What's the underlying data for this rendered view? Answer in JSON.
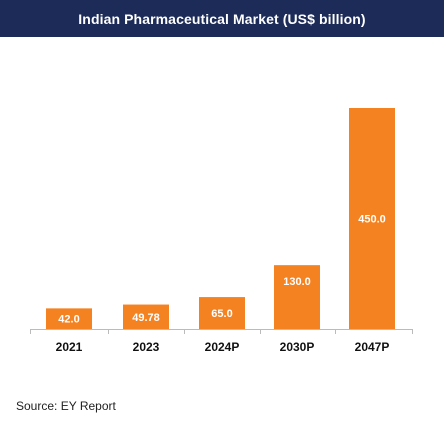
{
  "header": {
    "title": "Indian Pharmaceutical Market (US$ billion)"
  },
  "chart_data": {
    "type": "bar",
    "title": "Indian Pharmaceutical Market (US$ billion)",
    "categories": [
      "2021",
      "2023",
      "2024P",
      "2030P",
      "2047P"
    ],
    "values": [
      42.0,
      49.78,
      65.0,
      130.0,
      450.0
    ],
    "data_labels": [
      "42.0",
      "49.78",
      "65.0",
      "130.0",
      "450.0"
    ],
    "xlabel": "",
    "ylabel": "",
    "ylim": [
      0,
      450
    ],
    "grid": false,
    "legend": "none",
    "colors": {
      "bar": "#f58220",
      "title_background": "#1c2b58",
      "axis": "#bbbbbb"
    }
  },
  "footer": {
    "source": "Source: EY Report"
  }
}
